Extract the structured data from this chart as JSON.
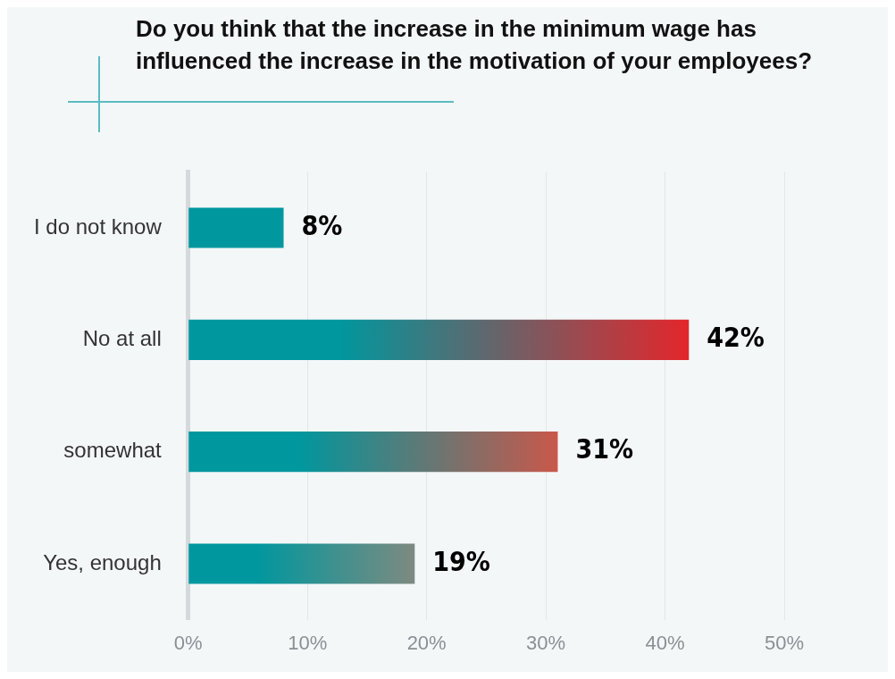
{
  "chart_data": {
    "type": "bar",
    "orientation": "horizontal",
    "title": "Do you think that the increase in the minimum wage has influenced the increase in the motivation of your employees?",
    "categories": [
      "I do not know",
      "No at all",
      "somewhat",
      "Yes, enough"
    ],
    "values": [
      8,
      42,
      31,
      19
    ],
    "colors": [
      "#00979e",
      "#e3262b",
      "#c9584a",
      "#7d8a80"
    ],
    "xlim": [
      0,
      50
    ],
    "xticks": [
      {
        "value": 0,
        "label": "0%"
      },
      {
        "value": 10,
        "label": "10%"
      },
      {
        "value": 20,
        "label": "20%"
      },
      {
        "value": 30,
        "label": "30%"
      },
      {
        "value": 40,
        "label": "40%"
      },
      {
        "value": 50,
        "label": "50%"
      }
    ],
    "value_labels": [
      "8%",
      "42%",
      "31%",
      "19%"
    ],
    "grid": "x",
    "legend": false
  }
}
